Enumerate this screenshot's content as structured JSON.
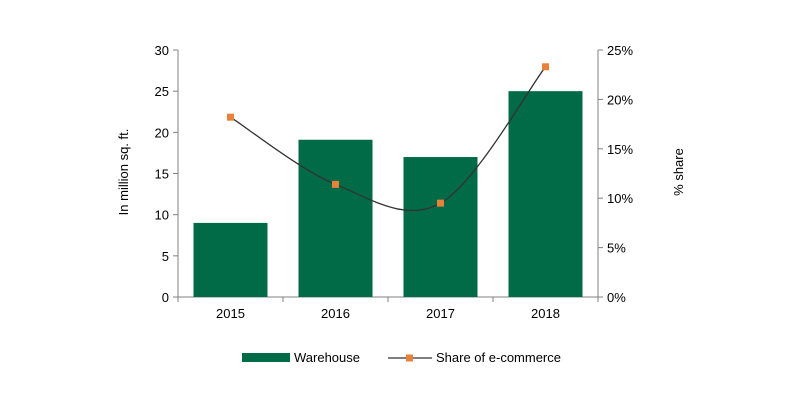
{
  "chart_data": {
    "type": "bar",
    "categories": [
      "2015",
      "2016",
      "2017",
      "2018"
    ],
    "series": [
      {
        "name": "Warehouse",
        "type": "bar",
        "axis": "left",
        "values": [
          9,
          19.1,
          17,
          25
        ]
      },
      {
        "name": "Share of e-commerce",
        "type": "line",
        "axis": "right",
        "values": [
          18.2,
          11.4,
          9.5,
          23.3
        ]
      }
    ],
    "ylabel": "In million sq. ft.",
    "ylim": [
      0,
      30
    ],
    "yticks": [
      "0",
      "5",
      "10",
      "15",
      "20",
      "25",
      "30"
    ],
    "y2label": "% share",
    "y2lim": [
      0,
      25
    ],
    "y2ticks": [
      "0%",
      "5%",
      "10%",
      "15%",
      "20%",
      "25%"
    ],
    "legend": {
      "position": "bottom",
      "items": [
        "Warehouse",
        "Share of e-commerce"
      ]
    },
    "grid": false,
    "colors": {
      "bar": "#006B46",
      "line": "#333333",
      "marker": "#E8823A",
      "axis": "#808080"
    }
  }
}
